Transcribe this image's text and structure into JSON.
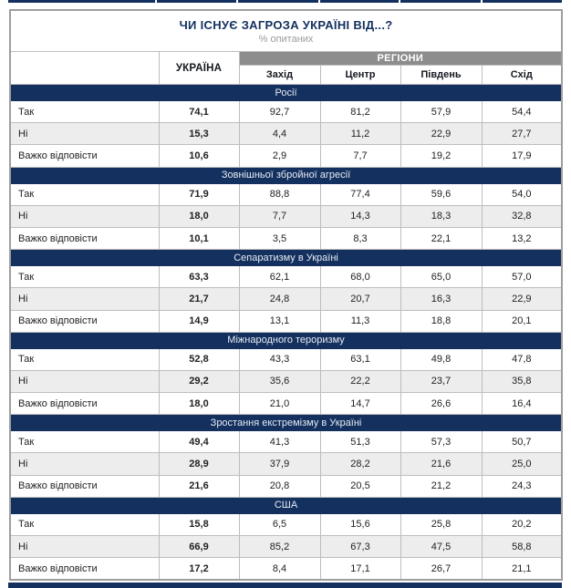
{
  "header": {
    "title": "ЧИ ІСНУЄ ЗАГРОЗА УКРАЇНІ ВІД...?",
    "subtitle": "% опитаних"
  },
  "table": {
    "ukraine_col": "УКРАЇНА",
    "regions_group": "РЕГІОНИ",
    "region_cols": [
      "Захід",
      "Центр",
      "Південь",
      "Схід"
    ],
    "sections": [
      {
        "title": "Росії",
        "rows": [
          {
            "label": "Так",
            "ukraine": "74,1",
            "regions": [
              "92,7",
              "81,2",
              "57,9",
              "54,4"
            ]
          },
          {
            "label": "Ні",
            "ukraine": "15,3",
            "regions": [
              "4,4",
              "11,2",
              "22,9",
              "27,7"
            ]
          },
          {
            "label": "Важко відповісти",
            "ukraine": "10,6",
            "regions": [
              "2,9",
              "7,7",
              "19,2",
              "17,9"
            ]
          }
        ]
      },
      {
        "title": "Зовнішньої збройної агресії",
        "rows": [
          {
            "label": "Так",
            "ukraine": "71,9",
            "regions": [
              "88,8",
              "77,4",
              "59,6",
              "54,0"
            ]
          },
          {
            "label": "Ні",
            "ukraine": "18,0",
            "regions": [
              "7,7",
              "14,3",
              "18,3",
              "32,8"
            ]
          },
          {
            "label": "Важко відповісти",
            "ukraine": "10,1",
            "regions": [
              "3,5",
              "8,3",
              "22,1",
              "13,2"
            ]
          }
        ]
      },
      {
        "title": "Сепаратизму в Україні",
        "rows": [
          {
            "label": "Так",
            "ukraine": "63,3",
            "regions": [
              "62,1",
              "68,0",
              "65,0",
              "57,0"
            ]
          },
          {
            "label": "Ні",
            "ukraine": "21,7",
            "regions": [
              "24,8",
              "20,7",
              "16,3",
              "22,9"
            ]
          },
          {
            "label": "Важко відповісти",
            "ukraine": "14,9",
            "regions": [
              "13,1",
              "11,3",
              "18,8",
              "20,1"
            ]
          }
        ]
      },
      {
        "title": "Міжнародного тероризму",
        "rows": [
          {
            "label": "Так",
            "ukraine": "52,8",
            "regions": [
              "43,3",
              "63,1",
              "49,8",
              "47,8"
            ]
          },
          {
            "label": "Ні",
            "ukraine": "29,2",
            "regions": [
              "35,6",
              "22,2",
              "23,7",
              "35,8"
            ]
          },
          {
            "label": "Важко відповісти",
            "ukraine": "18,0",
            "regions": [
              "21,0",
              "14,7",
              "26,6",
              "16,4"
            ]
          }
        ]
      },
      {
        "title": "Зростання екстремізму в Україні",
        "rows": [
          {
            "label": "Так",
            "ukraine": "49,4",
            "regions": [
              "41,3",
              "51,3",
              "57,3",
              "50,7"
            ]
          },
          {
            "label": "Ні",
            "ukraine": "28,9",
            "regions": [
              "37,9",
              "28,2",
              "21,6",
              "25,0"
            ]
          },
          {
            "label": "Важко відповісти",
            "ukraine": "21,6",
            "regions": [
              "20,8",
              "20,5",
              "21,2",
              "24,3"
            ]
          }
        ]
      },
      {
        "title": "США",
        "rows": [
          {
            "label": "Так",
            "ukraine": "15,8",
            "regions": [
              "6,5",
              "15,6",
              "25,8",
              "20,2"
            ]
          },
          {
            "label": "Ні",
            "ukraine": "66,9",
            "regions": [
              "85,2",
              "67,3",
              "47,5",
              "58,8"
            ]
          },
          {
            "label": "Важко відповісти",
            "ukraine": "17,2",
            "regions": [
              "8,4",
              "17,1",
              "26,7",
              "21,1"
            ]
          }
        ]
      }
    ]
  },
  "colors": {
    "navy": "#13305f",
    "regions_header_gray": "#8d8d8d",
    "alt_row_gray": "#ededed",
    "border_gray": "#bdbdbd",
    "subtitle_gray": "#9b9b9b"
  }
}
